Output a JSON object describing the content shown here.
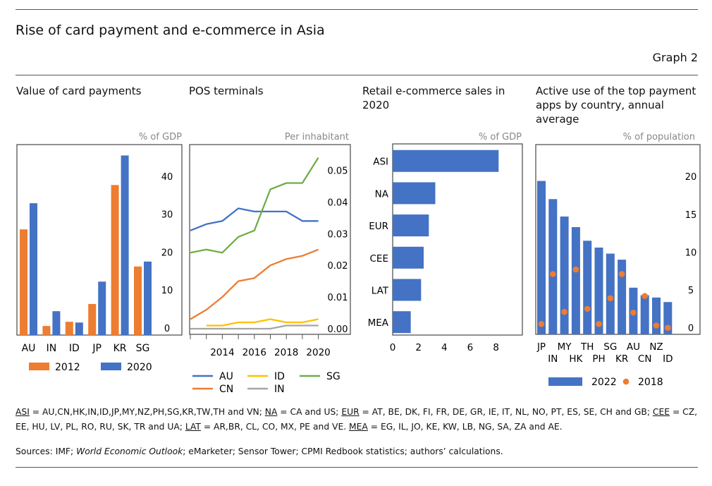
{
  "header": {
    "title": "Rise of card payment and e-commerce in Asia",
    "graph_number": "Graph 2"
  },
  "colors": {
    "blue": "#4472C4",
    "orange": "#ED7D31",
    "yellow": "#FFC000",
    "gray": "#A5A5A5",
    "green": "#70AD47"
  },
  "chart_data": [
    {
      "type": "bar",
      "title": "Value of card payments",
      "ylabel": "% of GDP",
      "categories": [
        "AU",
        "IN",
        "ID",
        "JP",
        "KR",
        "SG"
      ],
      "series": [
        {
          "name": "2012",
          "color": "#ED7D31",
          "values": [
            26.0,
            0.5,
            1.6,
            6.3,
            37.7,
            16.2
          ]
        },
        {
          "name": "2020",
          "color": "#4472C4",
          "values": [
            32.9,
            4.4,
            1.4,
            12.2,
            45.5,
            17.5
          ]
        }
      ],
      "yticks": [
        "0",
        "10",
        "20",
        "30",
        "40"
      ],
      "ylim": [
        -1.9,
        48
      ],
      "legend": "bottom"
    },
    {
      "type": "line",
      "title": "POS terminals",
      "ylabel": "Per inhabitant",
      "x": [
        2012,
        2013,
        2014,
        2015,
        2016,
        2017,
        2018,
        2019,
        2020
      ],
      "xticks": [
        "2014",
        "2016",
        "2018",
        "2020"
      ],
      "series": [
        {
          "name": "AU",
          "color": "#4472C4",
          "values": [
            0.031,
            0.033,
            0.034,
            0.038,
            0.037,
            0.037,
            0.037,
            0.034,
            0.034
          ]
        },
        {
          "name": "ID",
          "color": "#FFC000",
          "values": [
            null,
            0.001,
            0.001,
            0.002,
            0.002,
            0.003,
            0.002,
            0.002,
            0.003
          ]
        },
        {
          "name": "SG",
          "color": "#70AD47",
          "values": [
            0.024,
            0.025,
            0.024,
            0.029,
            0.031,
            0.044,
            0.046,
            0.046,
            0.054
          ]
        },
        {
          "name": "CN",
          "color": "#ED7D31",
          "values": [
            0.003,
            0.006,
            0.01,
            0.015,
            0.016,
            0.02,
            0.022,
            0.023,
            0.025
          ]
        },
        {
          "name": "IN",
          "color": "#A5A5A5",
          "values": [
            0.0,
            0.0,
            0.0,
            0.0,
            0.0,
            0.0,
            0.001,
            0.001,
            0.001
          ]
        }
      ],
      "yticks": [
        "0.00",
        "0.01",
        "0.02",
        "0.03",
        "0.04",
        "0.05"
      ],
      "ylim": [
        -0.0018,
        0.058
      ],
      "legend": "bottom"
    },
    {
      "type": "bar",
      "orientation": "horizontal",
      "title": "Retail e-commerce sales in 2020",
      "xlabel": "% of GDP",
      "categories": [
        "ASI",
        "NA",
        "EUR",
        "CEE",
        "LAT",
        "MEA"
      ],
      "values": [
        8.2,
        3.3,
        2.8,
        2.4,
        2.2,
        1.4
      ],
      "xticks": [
        "0",
        "2",
        "4",
        "6",
        "8"
      ],
      "xlim": [
        0,
        10
      ]
    },
    {
      "type": "bar",
      "title": "Active use of the top payment apps by country, annual average",
      "ylabel": "% of population",
      "categories": [
        "JP",
        "IN",
        "MY",
        "HK",
        "TH",
        "PH",
        "SG",
        "KR",
        "AU",
        "CN",
        "NZ",
        "ID"
      ],
      "series": [
        {
          "name": "2022",
          "kind": "bar",
          "color": "#4472C4",
          "values": [
            19.4,
            17.0,
            14.7,
            13.3,
            11.5,
            10.6,
            9.8,
            9.0,
            5.3,
            4.3,
            4.0,
            3.4
          ]
        },
        {
          "name": "2018",
          "kind": "dot",
          "color": "#ED7D31",
          "values": [
            0.5,
            7.1,
            2.1,
            7.7,
            2.5,
            0.5,
            3.9,
            7.1,
            2.0,
            4.2,
            0.3,
            0.0
          ]
        }
      ],
      "yticks": [
        "0",
        "5",
        "10",
        "15",
        "20"
      ],
      "ylim": [
        -0.9,
        22.5
      ],
      "legend": "bottom"
    }
  ],
  "footnote": {
    "items": [
      {
        "abbr": "ASI",
        "text": " = AU,CN,HK,IN,ID,JP,MY,NZ,PH,SG,KR,TW,TH and VN; "
      },
      {
        "abbr": "NA",
        "text": " = CA and US; "
      },
      {
        "abbr": "EUR",
        "text": " = AT, BE, DK, FI, FR, DE, GR, IE, IT, NL, NO, PT, ES, SE, CH and GB; "
      },
      {
        "abbr": "CEE",
        "text": " = CZ, EE, HU, LV, PL, RO, RU, SK, TR and UA; "
      },
      {
        "abbr": "LAT",
        "text": " = AR,BR, CL, CO, MX, PE and VE. "
      },
      {
        "abbr": "MEA",
        "text": " = EG, IL, JO, KE, KW, LB, NG, SA, ZA and AE."
      }
    ],
    "sources_prefix": "Sources: IMF; ",
    "sources_italic": "World Economic Outlook",
    "sources_suffix": "; eMarketer; Sensor Tower; CPMI Redbook statistics; authors’ calculations."
  }
}
